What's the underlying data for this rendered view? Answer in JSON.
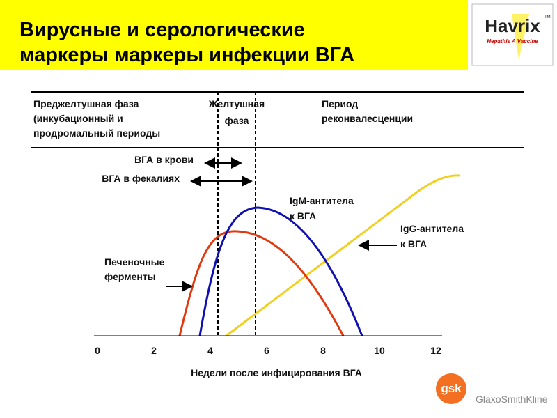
{
  "header": {
    "title_lines": [
      "Вирусные и серологические",
      "маркеры маркеры инфекции ВГА"
    ]
  },
  "logo": {
    "brand": "Havrix",
    "tm": "TM",
    "tagline": "Hepatitis A Vaccine"
  },
  "phases": [
    {
      "lines": [
        "Преджелтушная фаза",
        "(инкубационный и",
        "продромальный периоды"
      ]
    },
    {
      "lines": [
        "Желтушная",
        "фаза"
      ]
    },
    {
      "lines": [
        "Период",
        "реконвалесценции"
      ]
    }
  ],
  "intervals": [
    "ВГА в крови",
    "ВГА в фекалиях"
  ],
  "curve_labels": {
    "igm": [
      "IgM-антитела",
      "к ВГА"
    ],
    "igg": [
      "IgG-антитела",
      "к ВГА"
    ],
    "enzymes": [
      "Печеночные",
      "ферменты"
    ]
  },
  "x_axis": {
    "ticks": [
      "0",
      "2",
      "4",
      "6",
      "8",
      "10",
      "12"
    ],
    "label": "Недели после инфицирования ВГА"
  },
  "footer": {
    "gsk": "gsk",
    "company": "GlaxoSmithKline"
  }
}
